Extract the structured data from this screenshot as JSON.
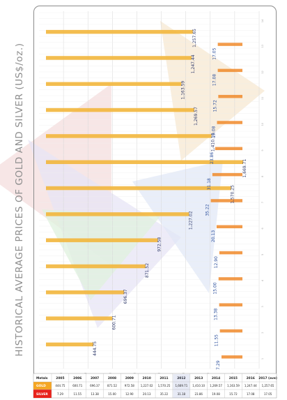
{
  "page": {
    "title": "HISTORICAL AVERAGE PRICES OF GOLD AND SILVER (US$/oz.)"
  },
  "colors": {
    "gold_bar": "#f2b63c",
    "silver_bar": "#f08a2a",
    "gold_row": "#f5a623",
    "silver_row": "#e8231c",
    "accent_blue": "#3a4fb0"
  },
  "chart_data": {
    "type": "bar",
    "title": "HISTORICAL AVERAGE PRICES OF GOLD AND SILVER (US$/oz.)",
    "categories": [
      "2005",
      "2006",
      "2007",
      "2008",
      "2009",
      "2010",
      "2011",
      "2012",
      "2013",
      "2014",
      "2015",
      "2016",
      "2017"
    ],
    "series": [
      {
        "name": "GOLD",
        "values": [
          444.75,
          600.71,
          696.37,
          871.52,
          972.58,
          1227.02,
          1570.25,
          1669.71,
          1410.1,
          1269.57,
          1163.59,
          1247.44,
          1257.65
        ]
      },
      {
        "name": "SILVER",
        "values": [
          7.29,
          11.55,
          13.38,
          15.0,
          12.9,
          20.13,
          35.22,
          31.18,
          23.86,
          19.08,
          15.72,
          17.08,
          17.05
        ]
      }
    ],
    "gold_labels": [
      "444.75",
      "600.71",
      "696.37",
      "871.52",
      "972.58",
      "1,227.02",
      "1,570.25",
      "1,669.71",
      "1,410.10",
      "1,269.57",
      "1,163.59",
      "1,247.44",
      "1,257.65"
    ],
    "silver_labels": [
      "7.29",
      "11.55",
      "13.38",
      "15.00",
      "12.90",
      "20.13",
      "35.22",
      "31.18",
      "23.86",
      "19.08",
      "15.72",
      "17.08",
      "17.05"
    ],
    "indices": [
      "1",
      "2",
      "3",
      "4",
      "5",
      "6",
      "7",
      "8",
      "9",
      "10",
      "11",
      "12",
      "13"
    ],
    "gold_axis_ticks": [
      "200",
      "400",
      "600",
      "800",
      "1,000",
      "1,200",
      "1,400",
      "1,600",
      "1,800"
    ],
    "silver_index_ticks": [
      "14"
    ],
    "gold_axis_range": [
      0,
      1800
    ],
    "silver_display_scale": 1,
    "table": {
      "header_label": "Metals",
      "years": [
        "2005",
        "2006",
        "2007",
        "2008",
        "2009",
        "2010",
        "2011",
        "2012",
        "2013",
        "2014",
        "2015",
        "2016",
        "2017"
      ],
      "last_header_note": "(ave)",
      "rows": [
        {
          "metal": "GOLD",
          "values": [
            "444.75",
            "600.71",
            "696.37",
            "871.52",
            "972.58",
            "1,227.02",
            "1,570.25",
            "1,669.71",
            "1,410.10",
            "1,269.57",
            "1,163.59",
            "1,247.44",
            "1,257.65"
          ]
        },
        {
          "metal": "SILVER",
          "values": [
            "7.29",
            "11.55",
            "13.38",
            "15.00",
            "12.90",
            "20.13",
            "35.22",
            "31.18",
            "23.86",
            "19.08",
            "15.72",
            "17.08",
            "17.05"
          ]
        }
      ]
    },
    "grid": true,
    "legend": "none"
  }
}
